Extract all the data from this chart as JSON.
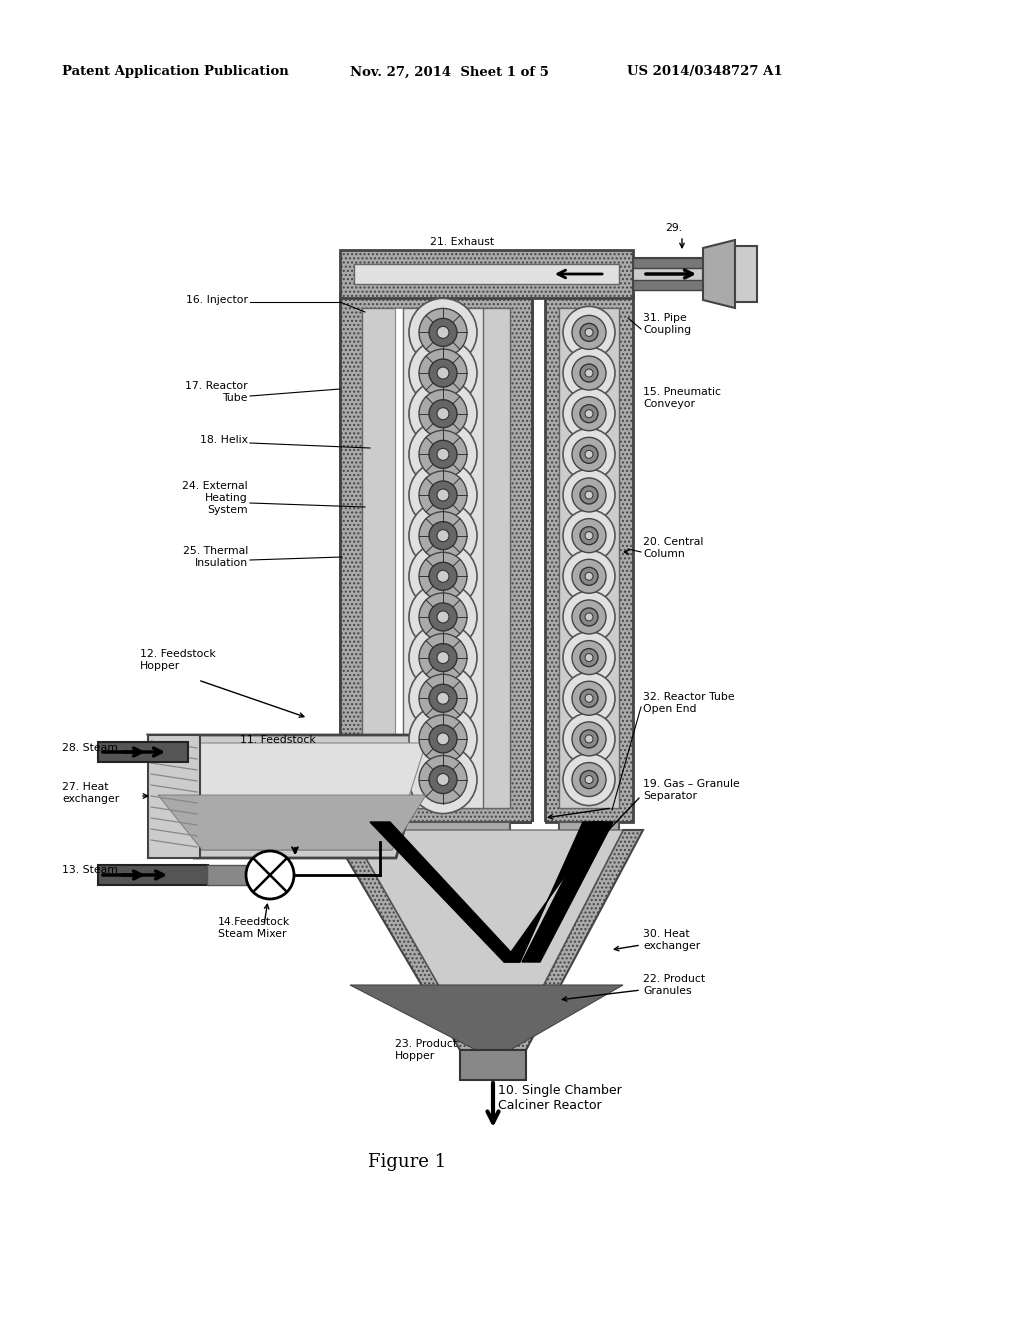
{
  "header_left": "Patent Application Publication",
  "header_mid": "Nov. 27, 2014  Sheet 1 of 5",
  "header_right": "US 2014/0348727 A1",
  "figure_label": "Figure 1",
  "bg": "#ffffff",
  "labels": {
    "10": "10. Single Chamber\nCalciner Reactor",
    "11": "11. Feedstock",
    "12": "12. Feedstock\nHopper",
    "13": "13. Steam",
    "14": "14.Feedstock\nSteam Mixer",
    "15": "15. Pneumatic\nConveyor",
    "16": "16. Injector",
    "17": "17. Reactor\nTube",
    "18": "18. Helix",
    "19": "19. Gas – Granule\nSeparator",
    "20": "20. Central\nColumn",
    "21": "21. Exhaust",
    "22": "22. Product\nGranules",
    "23": "23. Product\nHopper",
    "24": "24. External\nHeating\nSystem",
    "25": "25. Thermal\nInsulation",
    "27": "27. Heat\nexchanger",
    "28": "28. Steam",
    "29": "29.",
    "30": "30. Heat\nexchanger",
    "31": "31. Pipe\nCoupling",
    "32": "32. Reactor Tube\nOpen End"
  },
  "colors": {
    "dark_gray": "#777777",
    "mid_gray": "#aaaaaa",
    "light_gray": "#cccccc",
    "lighter_gray": "#e0e0e0",
    "very_dark": "#444444",
    "black": "#000000",
    "white": "#ffffff",
    "hatch_gray": "#999999",
    "dot_fill": "#bbbbbb"
  }
}
